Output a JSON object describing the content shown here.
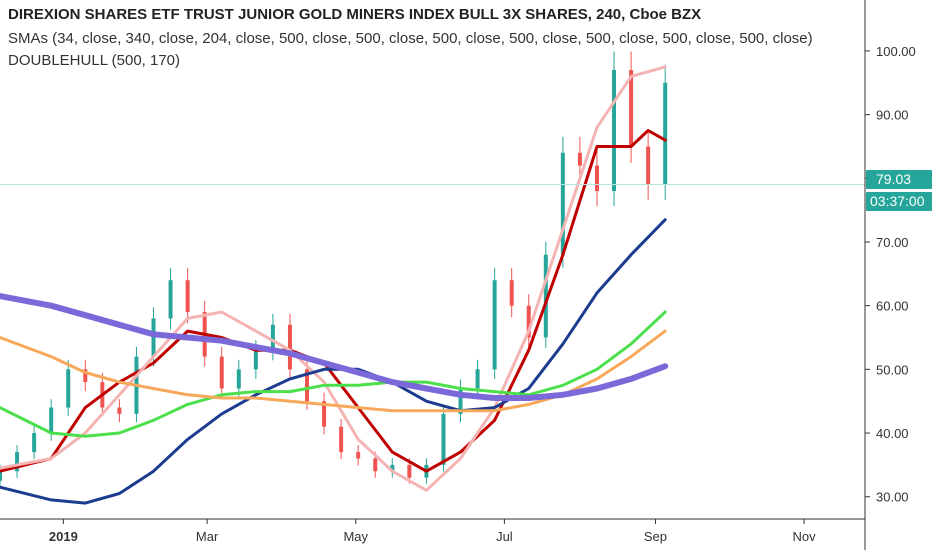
{
  "header": {
    "title": "DIREXION SHARES ETF TRUST JUNIOR GOLD MINERS INDEX BULL 3X SHARES, 240, Cboe BZX",
    "smas": "SMAs (34, close, 340, close, 204, close, 500, close, 500, close, 500, close, 500, close, 500, close, 500, close, 500, close)",
    "doublehull": "DOUBLEHULL (500, 170)"
  },
  "price_label": {
    "value": "79.03",
    "color": "#26a69a"
  },
  "time_label": {
    "value": "03:37:00",
    "color": "#26a69a"
  },
  "colors": {
    "up_candle": "#26a69a",
    "down_candle": "#ef5350",
    "price_line": "#b6e3dc",
    "axis_text": "#333333",
    "grid": "#f0f0f0"
  },
  "chart_data": {
    "type": "line",
    "title": "DIREXION SHARES ETF TRUST JUNIOR GOLD MINERS INDEX BULL 3X SHARES, 240, Cboe BZX",
    "xlabel": "",
    "ylabel": "",
    "x_ticks": [
      "2019",
      "Mar",
      "May",
      "Jul",
      "Sep",
      "Nov"
    ],
    "x_tick_dates": [
      "2019-01-01",
      "2019-03-01",
      "2019-05-01",
      "2019-07-01",
      "2019-09-01",
      "2019-11-01"
    ],
    "x_range": [
      "2018-12-06",
      "2019-11-26"
    ],
    "y_ticks": [
      "30.00",
      "40.00",
      "50.00",
      "60.00",
      "70.00",
      "80.00",
      "90.00",
      "100.00"
    ],
    "ylim": [
      26.5,
      108
    ],
    "current_price": 79.03,
    "grid": false,
    "candles": {
      "x": [
        "2018-12-06",
        "2018-12-13",
        "2018-12-20",
        "2018-12-27",
        "2019-01-03",
        "2019-01-10",
        "2019-01-17",
        "2019-01-24",
        "2019-01-31",
        "2019-02-07",
        "2019-02-14",
        "2019-02-21",
        "2019-02-28",
        "2019-03-07",
        "2019-03-14",
        "2019-03-21",
        "2019-03-28",
        "2019-04-04",
        "2019-04-11",
        "2019-04-18",
        "2019-04-25",
        "2019-05-02",
        "2019-05-09",
        "2019-05-16",
        "2019-05-23",
        "2019-05-30",
        "2019-06-06",
        "2019-06-13",
        "2019-06-20",
        "2019-06-27",
        "2019-07-04",
        "2019-07-11",
        "2019-07-18",
        "2019-07-25",
        "2019-08-01",
        "2019-08-08",
        "2019-08-15",
        "2019-08-22",
        "2019-08-29",
        "2019-09-05"
      ],
      "close": [
        34,
        37,
        40,
        44,
        50,
        48,
        44,
        43,
        52,
        58,
        64,
        59,
        52,
        47,
        50,
        53,
        57,
        50,
        45,
        41,
        37,
        36,
        34,
        35,
        33,
        35,
        43,
        47,
        50,
        64,
        60,
        55,
        68,
        84,
        82,
        78,
        97,
        85,
        79,
        95
      ]
    },
    "series": [
      {
        "name": "",
        "color": "#c00000",
        "x": [
          "2018-12-06",
          "2018-12-27",
          "2019-01-10",
          "2019-01-24",
          "2019-02-07",
          "2019-02-21",
          "2019-03-07",
          "2019-03-21",
          "2019-04-04",
          "2019-04-18",
          "2019-05-02",
          "2019-05-16",
          "2019-05-30",
          "2019-06-13",
          "2019-06-27",
          "2019-07-11",
          "2019-07-25",
          "2019-08-08",
          "2019-08-22",
          "2019-08-29",
          "2019-09-05"
        ],
        "values": [
          34,
          36,
          44,
          48,
          51,
          56,
          55,
          53,
          53,
          51,
          44,
          37,
          34,
          37,
          42,
          53,
          68,
          85,
          85,
          87.5,
          86
        ]
      },
      {
        "name": "",
        "color": "#f4b4b4",
        "x": [
          "2018-12-06",
          "2018-12-27",
          "2019-01-10",
          "2019-01-24",
          "2019-02-07",
          "2019-02-21",
          "2019-03-07",
          "2019-03-21",
          "2019-04-04",
          "2019-04-18",
          "2019-05-02",
          "2019-05-16",
          "2019-05-30",
          "2019-06-13",
          "2019-06-27",
          "2019-07-11",
          "2019-07-25",
          "2019-08-08",
          "2019-08-22",
          "2019-09-05"
        ],
        "values": [
          34.5,
          36,
          40,
          46,
          52,
          58,
          59,
          56,
          53,
          48,
          39,
          34,
          31,
          36,
          44,
          56,
          72,
          88,
          96,
          97.5
        ]
      },
      {
        "name": "",
        "color": "#1b3c8f",
        "x": [
          "2018-12-06",
          "2018-12-27",
          "2019-01-10",
          "2019-01-24",
          "2019-02-07",
          "2019-02-21",
          "2019-03-07",
          "2019-03-21",
          "2019-04-04",
          "2019-04-18",
          "2019-05-02",
          "2019-05-16",
          "2019-05-30",
          "2019-06-13",
          "2019-06-27",
          "2019-07-11",
          "2019-07-25",
          "2019-08-08",
          "2019-08-22",
          "2019-09-05"
        ],
        "values": [
          31.5,
          29.5,
          29,
          30.5,
          34,
          39,
          43,
          46,
          48.5,
          50,
          50,
          48,
          45,
          43.5,
          44,
          47,
          54,
          62,
          68,
          73.5
        ]
      },
      {
        "name": "",
        "color": "#4be04b",
        "x": [
          "2018-12-06",
          "2018-12-27",
          "2019-01-10",
          "2019-01-24",
          "2019-02-07",
          "2019-02-21",
          "2019-03-07",
          "2019-03-21",
          "2019-04-04",
          "2019-04-18",
          "2019-05-02",
          "2019-05-16",
          "2019-05-30",
          "2019-06-13",
          "2019-06-27",
          "2019-07-11",
          "2019-07-25",
          "2019-08-08",
          "2019-08-22",
          "2019-09-05"
        ],
        "values": [
          44,
          40,
          39.5,
          40,
          42,
          44.5,
          46,
          46.5,
          46.5,
          47.5,
          47.5,
          48,
          48,
          47,
          46.5,
          46,
          47.5,
          50,
          54,
          59
        ]
      },
      {
        "name": "",
        "color": "#f7a85a",
        "x": [
          "2018-12-06",
          "2018-12-27",
          "2019-01-10",
          "2019-01-24",
          "2019-02-07",
          "2019-02-21",
          "2019-03-07",
          "2019-03-21",
          "2019-04-04",
          "2019-04-18",
          "2019-05-02",
          "2019-05-16",
          "2019-05-30",
          "2019-06-13",
          "2019-06-27",
          "2019-07-11",
          "2019-07-25",
          "2019-08-08",
          "2019-08-22",
          "2019-09-05"
        ],
        "values": [
          55,
          52,
          49.5,
          48,
          47,
          46,
          45.5,
          45.5,
          45,
          44.5,
          44,
          43.5,
          43.5,
          43.5,
          43.5,
          44.5,
          46,
          48.5,
          52,
          56
        ]
      },
      {
        "name": "",
        "color": "#7b68d9",
        "x": [
          "2018-12-06",
          "2018-12-27",
          "2019-01-10",
          "2019-01-24",
          "2019-02-07",
          "2019-02-21",
          "2019-03-07",
          "2019-03-21",
          "2019-04-04",
          "2019-04-18",
          "2019-05-02",
          "2019-05-16",
          "2019-05-30",
          "2019-06-13",
          "2019-06-27",
          "2019-07-11",
          "2019-07-25",
          "2019-08-08",
          "2019-08-22",
          "2019-09-05"
        ],
        "values": [
          61.5,
          60,
          58.5,
          57,
          55.5,
          55,
          54.5,
          53.5,
          52.5,
          51,
          49.5,
          48,
          47,
          46,
          45.5,
          45.5,
          46,
          47,
          48.5,
          50.5
        ]
      }
    ]
  }
}
